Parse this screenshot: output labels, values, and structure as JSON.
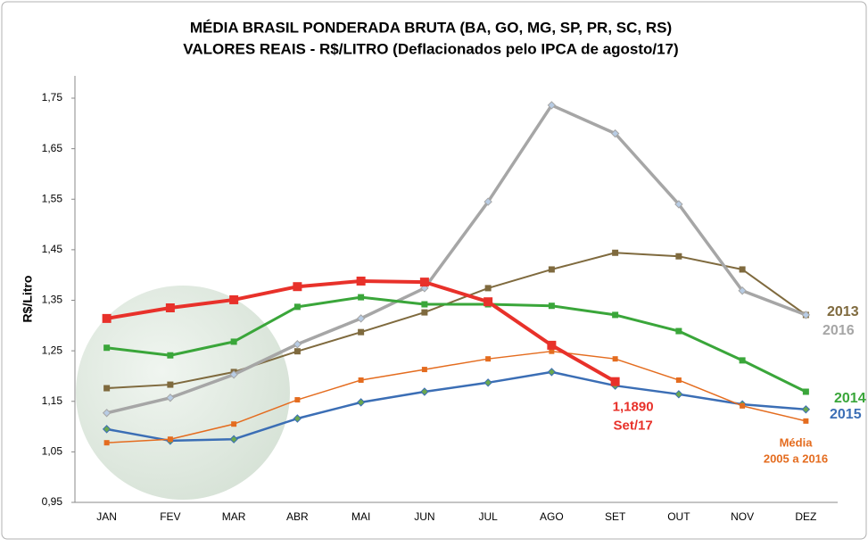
{
  "chart_data": {
    "type": "line",
    "title": [
      "MÉDIA BRASIL PONDERADA BRUTA (BA, GO, MG, SP, PR, SC, RS)",
      "VALORES REAIS - R$/LITRO (Deflacionados pelo IPCA de agosto/17)"
    ],
    "y_label": "R$/Litro",
    "categories": [
      "JAN",
      "FEV",
      "MAR",
      "ABR",
      "MAI",
      "JUN",
      "JUL",
      "AGO",
      "SET",
      "OUT",
      "NOV",
      "DEZ"
    ],
    "ylim": [
      0.95,
      1.75
    ],
    "yticks": [
      {
        "value": 0.95,
        "label": "0,95"
      },
      {
        "value": 1.05,
        "label": "1,05"
      },
      {
        "value": 1.15,
        "label": "1,15"
      },
      {
        "value": 1.25,
        "label": "1,25"
      },
      {
        "value": 1.35,
        "label": "1,35"
      },
      {
        "value": 1.45,
        "label": "1,45"
      },
      {
        "value": 1.55,
        "label": "1,55"
      },
      {
        "value": 1.65,
        "label": "1,65"
      },
      {
        "value": 1.75,
        "label": "1,75"
      }
    ],
    "series": [
      {
        "name": "2013",
        "color": "#7f6a3e",
        "marker": "square",
        "values": [
          1.176,
          1.183,
          1.208,
          1.249,
          1.287,
          1.326,
          1.374,
          1.411,
          1.444,
          1.437,
          1.411,
          1.321
        ]
      },
      {
        "name": "2016",
        "color": "#a6a6a6",
        "marker": "diamond",
        "values": [
          1.127,
          1.157,
          1.203,
          1.263,
          1.314,
          1.374,
          1.545,
          1.736,
          1.68,
          1.54,
          1.369,
          1.321
        ]
      },
      {
        "name": "2014",
        "color": "#3aa63a",
        "marker": "square",
        "values": [
          1.256,
          1.241,
          1.268,
          1.337,
          1.356,
          1.342,
          1.342,
          1.339,
          1.321,
          1.289,
          1.231,
          1.169
        ]
      },
      {
        "name": "2015",
        "color": "#3b6eb5",
        "marker": "diamond",
        "values": [
          1.095,
          1.072,
          1.075,
          1.116,
          1.148,
          1.169,
          1.187,
          1.208,
          1.181,
          1.164,
          1.144,
          1.134
        ]
      },
      {
        "name": [
          "Média",
          "2005 a 2016"
        ],
        "color": "#e46c1f",
        "marker": "square",
        "values": [
          1.068,
          1.075,
          1.105,
          1.153,
          1.192,
          1.213,
          1.234,
          1.249,
          1.234,
          1.192,
          1.141,
          1.111
        ]
      },
      {
        "color": "#e8312a",
        "marker": "square",
        "values": [
          1.314,
          1.335,
          1.351,
          1.377,
          1.388,
          1.386,
          1.347,
          1.261,
          1.189,
          null,
          null,
          null
        ],
        "value_labels": [
          null,
          null,
          null,
          null,
          null,
          null,
          null,
          null,
          "1,1890",
          null,
          null,
          null
        ]
      }
    ],
    "annotations": [
      "Set/17"
    ]
  }
}
